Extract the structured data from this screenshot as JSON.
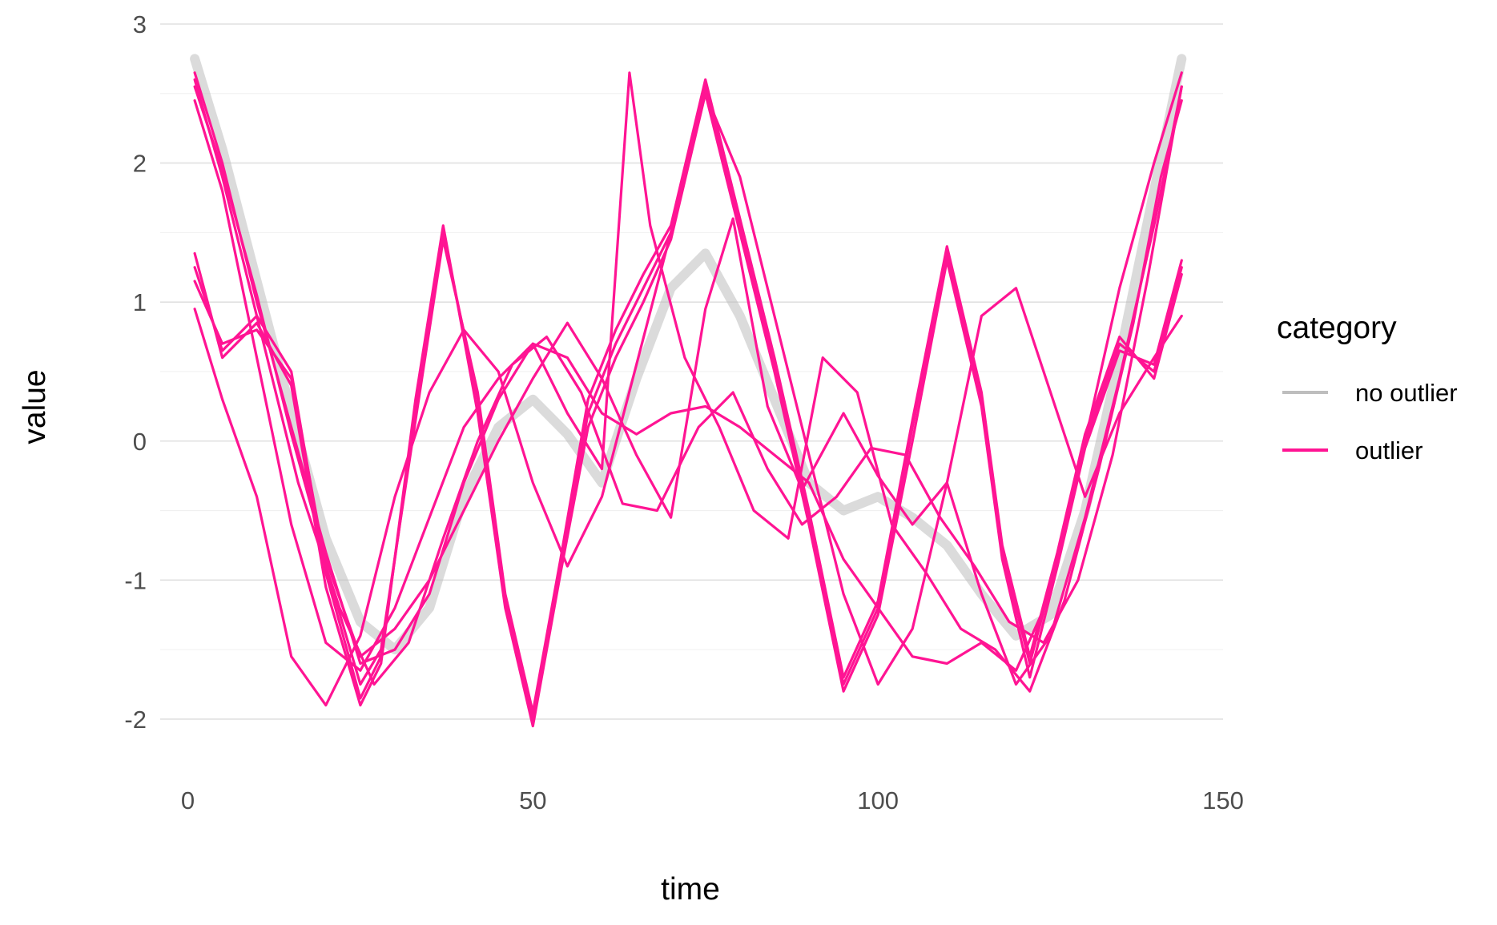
{
  "chart_data": {
    "type": "line",
    "title": "",
    "xlabel": "time",
    "ylabel": "value",
    "xlim": [
      -4,
      150
    ],
    "ylim": [
      -2.3,
      3.0
    ],
    "x_ticks": [
      0,
      50,
      100,
      150
    ],
    "y_ticks": [
      -2,
      -1,
      0,
      1,
      2,
      3
    ],
    "x_tick_labels": [
      "0",
      "50",
      "100",
      "150"
    ],
    "y_tick_labels": [
      "-2",
      "-1",
      "0",
      "1",
      "2",
      "3"
    ],
    "grid": true,
    "legend": {
      "title": "category",
      "position": "right",
      "entries": [
        {
          "label": "no outlier",
          "color": "#bebebe"
        },
        {
          "label": "outlier",
          "color": "#ff1493"
        }
      ]
    },
    "series": [
      {
        "category": "no outlier",
        "color": "#bebebe",
        "x": [
          1,
          5,
          10,
          15,
          20,
          25,
          30,
          35,
          40,
          45,
          50,
          55,
          60,
          65,
          70,
          75,
          80,
          85,
          90,
          95,
          100,
          105,
          110,
          115,
          120,
          125,
          130,
          135,
          140,
          144
        ],
        "values": [
          2.75,
          2.1,
          1.15,
          0.2,
          -0.7,
          -1.3,
          -1.5,
          -1.2,
          -0.4,
          0.1,
          0.3,
          0.05,
          -0.3,
          0.45,
          1.1,
          1.35,
          0.9,
          0.3,
          -0.3,
          -0.5,
          -0.4,
          -0.55,
          -0.75,
          -1.1,
          -1.4,
          -1.25,
          -0.5,
          0.6,
          1.8,
          2.75
        ]
      },
      {
        "category": "outlier",
        "color": "#ff1493",
        "x": [
          1,
          5,
          10,
          15,
          20,
          25,
          30,
          35,
          40,
          45,
          50,
          55,
          60,
          65,
          70,
          75,
          80,
          85,
          90,
          95,
          100,
          105,
          110,
          115,
          120,
          125,
          130,
          135,
          140,
          144
        ],
        "values": [
          2.65,
          2.0,
          1.0,
          0.1,
          -0.8,
          -1.6,
          -1.5,
          -1.1,
          -0.3,
          0.3,
          0.7,
          0.6,
          0.2,
          0.05,
          0.2,
          0.25,
          0.1,
          -0.1,
          -0.3,
          -0.85,
          -1.2,
          -1.55,
          -1.6,
          -1.45,
          -1.65,
          -1.1,
          0.0,
          1.1,
          2.0,
          2.65
        ]
      },
      {
        "category": "outlier",
        "color": "#ff1493",
        "x": [
          1,
          5,
          10,
          15,
          20,
          25,
          28,
          33,
          37,
          42,
          46,
          50,
          54,
          58,
          62,
          66,
          70,
          75,
          80,
          85,
          90,
          95,
          100,
          105,
          110,
          115,
          118,
          122,
          126,
          130,
          135,
          140,
          144
        ],
        "values": [
          1.25,
          0.65,
          0.9,
          0.5,
          -0.95,
          -1.85,
          -1.55,
          0.2,
          1.5,
          0.3,
          -1.15,
          -2.0,
          -0.9,
          0.2,
          0.7,
          1.1,
          1.5,
          2.55,
          1.55,
          0.55,
          -0.55,
          -1.75,
          -1.2,
          0.1,
          1.35,
          0.3,
          -0.8,
          -1.6,
          -0.85,
          0.0,
          0.7,
          0.5,
          1.25
        ]
      },
      {
        "category": "outlier",
        "color": "#ff1493",
        "x": [
          1,
          5,
          10,
          15,
          20,
          25,
          28,
          33,
          37,
          42,
          46,
          50,
          54,
          58,
          62,
          66,
          70,
          75,
          80,
          85,
          90,
          95,
          100,
          105,
          110,
          115,
          118,
          122,
          126,
          130,
          135,
          140,
          144
        ],
        "values": [
          1.35,
          0.6,
          0.85,
          0.4,
          -1.05,
          -1.9,
          -1.6,
          0.3,
          1.55,
          0.2,
          -1.2,
          -2.05,
          -0.95,
          0.1,
          0.6,
          1.0,
          1.45,
          2.5,
          1.5,
          0.5,
          -0.6,
          -1.8,
          -1.25,
          0.0,
          1.3,
          0.25,
          -0.85,
          -1.7,
          -0.9,
          -0.05,
          0.65,
          0.55,
          1.3
        ]
      },
      {
        "category": "outlier",
        "color": "#ff1493",
        "x": [
          1,
          5,
          10,
          15,
          20,
          25,
          28,
          33,
          37,
          42,
          46,
          50,
          54,
          58,
          62,
          66,
          70,
          75,
          80,
          85,
          90,
          95,
          100,
          105,
          110,
          115,
          118,
          122,
          126,
          130,
          135,
          140,
          144
        ],
        "values": [
          1.15,
          0.7,
          0.8,
          0.45,
          -0.9,
          -1.75,
          -1.5,
          0.15,
          1.45,
          0.35,
          -1.1,
          -1.95,
          -0.85,
          0.3,
          0.8,
          1.2,
          1.55,
          2.6,
          1.6,
          0.6,
          -0.5,
          -1.7,
          -1.15,
          0.15,
          1.4,
          0.35,
          -0.75,
          -1.55,
          -0.8,
          0.05,
          0.75,
          0.45,
          1.2
        ]
      },
      {
        "category": "outlier",
        "color": "#ff1493",
        "x": [
          1,
          5,
          10,
          16,
          22,
          27,
          32,
          37,
          42,
          47,
          52,
          57,
          63,
          68,
          74,
          79,
          84,
          89,
          94,
          99,
          104,
          109,
          114,
          119,
          124,
          129,
          134,
          139,
          144
        ],
        "values": [
          2.6,
          1.9,
          0.9,
          -0.3,
          -1.2,
          -1.75,
          -1.45,
          -0.7,
          0.0,
          0.55,
          0.75,
          0.35,
          -0.45,
          -0.5,
          0.1,
          0.35,
          -0.2,
          -0.6,
          -0.4,
          -0.05,
          -0.1,
          -0.55,
          -0.9,
          -1.3,
          -1.45,
          -1.0,
          -0.1,
          1.15,
          2.55
        ]
      },
      {
        "category": "outlier",
        "color": "#ff1493",
        "x": [
          1,
          5,
          10,
          15,
          20,
          25,
          30,
          35,
          40,
          45,
          50,
          55,
          60,
          65,
          70,
          75,
          80,
          85,
          90,
          95,
          100,
          105,
          110,
          115,
          120,
          125,
          130,
          135,
          140,
          144
        ],
        "values": [
          0.95,
          0.3,
          -0.4,
          -1.55,
          -1.9,
          -1.4,
          -0.4,
          0.35,
          0.8,
          0.5,
          -0.3,
          -0.9,
          -0.4,
          0.55,
          1.5,
          2.5,
          1.9,
          0.9,
          -0.1,
          -1.1,
          -1.75,
          -1.35,
          -0.3,
          0.9,
          1.1,
          0.35,
          -0.4,
          0.2,
          0.6,
          0.9
        ]
      },
      {
        "category": "outlier",
        "color": "#ff1493",
        "x": [
          1,
          5,
          10,
          15,
          20,
          25,
          30,
          35,
          40,
          45,
          50,
          55,
          60,
          64,
          67,
          72,
          77,
          82,
          87,
          92,
          97,
          102,
          107,
          112,
          117,
          122,
          127,
          132,
          137,
          141,
          144
        ],
        "values": [
          2.45,
          1.8,
          0.6,
          -0.6,
          -1.45,
          -1.65,
          -1.2,
          -0.55,
          0.1,
          0.45,
          0.7,
          0.2,
          -0.2,
          2.65,
          1.55,
          0.6,
          0.1,
          -0.5,
          -0.7,
          0.6,
          0.35,
          -0.6,
          -0.95,
          -1.35,
          -1.5,
          -1.8,
          -1.15,
          -0.2,
          0.85,
          1.9,
          2.45
        ]
      },
      {
        "category": "outlier",
        "color": "#ff1493",
        "x": [
          1,
          5,
          10,
          15,
          20,
          25,
          30,
          35,
          40,
          45,
          50,
          55,
          60,
          65,
          70,
          75,
          79,
          84,
          89,
          95,
          100,
          105,
          110,
          115,
          120,
          125,
          130,
          135,
          140,
          144
        ],
        "values": [
          2.55,
          1.95,
          1.05,
          0.05,
          -0.85,
          -1.55,
          -1.35,
          -1.0,
          -0.5,
          0.0,
          0.45,
          0.85,
          0.45,
          -0.1,
          -0.55,
          0.95,
          1.6,
          0.25,
          -0.35,
          0.2,
          -0.25,
          -0.6,
          -0.3,
          -1.1,
          -1.75,
          -1.4,
          -0.55,
          0.45,
          1.55,
          2.55
        ]
      }
    ]
  }
}
